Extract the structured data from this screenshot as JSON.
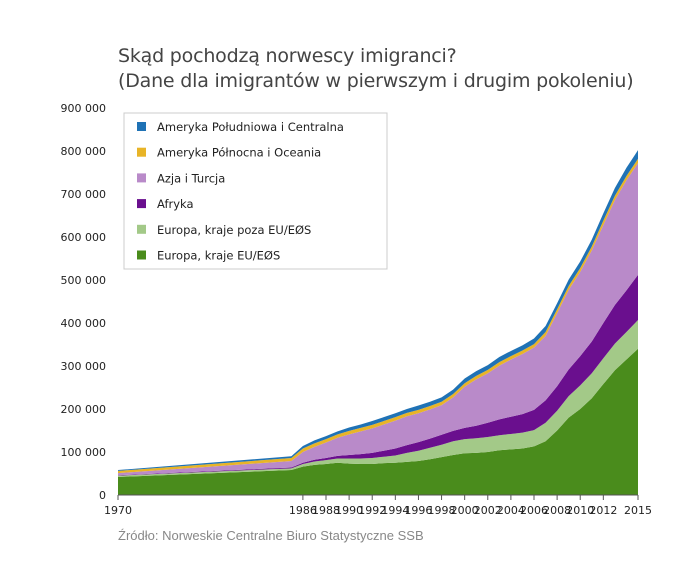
{
  "chart_data": {
    "type": "area",
    "stacked": true,
    "title": "Skąd pochodzą norwescy imigranci?",
    "subtitle": "(Dane dla imigrantów w pierwszym i drugim pokoleniu)",
    "source": "Źródło: Norweskie Centralne Biuro Statystyczne SSB",
    "ylim": [
      0,
      900000
    ],
    "y_ticks": [
      0,
      100000,
      200000,
      300000,
      400000,
      500000,
      600000,
      700000,
      800000,
      900000
    ],
    "y_tick_labels": [
      "0",
      "100 000",
      "200 000",
      "300 000",
      "400 000",
      "500 000",
      "600 000",
      "700 000",
      "800 000",
      "900 000"
    ],
    "x_ticks": [
      1970,
      1986,
      1988,
      1990,
      1992,
      1994,
      1996,
      1998,
      2000,
      2002,
      2004,
      2006,
      2008,
      2010,
      2012,
      2015
    ],
    "x": [
      1970,
      1985,
      1986,
      1987,
      1988,
      1989,
      1990,
      1991,
      1992,
      1993,
      1994,
      1995,
      1996,
      1997,
      1998,
      1999,
      2000,
      2001,
      2002,
      2003,
      2004,
      2005,
      2006,
      2007,
      2008,
      2009,
      2010,
      2011,
      2012,
      2013,
      2014,
      2015
    ],
    "legend_position": "top-left",
    "grid": false,
    "series": [
      {
        "name": "Europa, kraje EU/EØS",
        "color": "#4a8c1c",
        "values": [
          42000,
          58000,
          66000,
          70000,
          72000,
          75000,
          73000,
          72000,
          72000,
          74000,
          75000,
          77000,
          79000,
          83000,
          88000,
          93000,
          97000,
          98000,
          100000,
          104000,
          106000,
          108000,
          113000,
          125000,
          150000,
          180000,
          200000,
          225000,
          258000,
          290000,
          315000,
          340000
        ]
      },
      {
        "name": "Europa, kraje poza EU/EØS",
        "color": "#a3c988",
        "values": [
          3000,
          4000,
          6000,
          8000,
          9000,
          10000,
          12000,
          13000,
          14000,
          15000,
          17000,
          21000,
          24000,
          27000,
          29000,
          32000,
          33000,
          34000,
          35000,
          35000,
          36000,
          37000,
          38000,
          43000,
          46000,
          50000,
          55000,
          58000,
          60000,
          62000,
          64000,
          67000
        ]
      },
      {
        "name": "Afryka",
        "color": "#6a0f8e",
        "values": [
          1000,
          2000,
          3000,
          4000,
          5000,
          6000,
          8000,
          10000,
          12000,
          14000,
          16000,
          18000,
          20000,
          21000,
          23000,
          24000,
          26000,
          29000,
          33000,
          37000,
          40000,
          43000,
          47000,
          52000,
          57000,
          62000,
          68000,
          74000,
          82000,
          90000,
          97000,
          105000
        ]
      },
      {
        "name": "Azja i Turcja",
        "color": "#b98ac9",
        "values": [
          5000,
          15000,
          25000,
          30000,
          36000,
          42000,
          48000,
          53000,
          57000,
          61000,
          65000,
          67000,
          67000,
          68000,
          69000,
          78000,
          96000,
          108000,
          115000,
          125000,
          133000,
          140000,
          145000,
          150000,
          170000,
          185000,
          196000,
          212000,
          228000,
          244000,
          256000,
          260000
        ]
      },
      {
        "name": "Ameryka Północna i Oceania",
        "color": "#e8b427",
        "values": [
          5000,
          7000,
          8000,
          8000,
          8000,
          8000,
          8000,
          8000,
          8000,
          8000,
          8000,
          8000,
          8000,
          8000,
          8000,
          8000,
          8000,
          8000,
          8000,
          8000,
          8000,
          8000,
          8000,
          9000,
          9000,
          9000,
          9000,
          9000,
          10000,
          10000,
          10000,
          10000
        ]
      },
      {
        "name": "Ameryka Południowa i Centralna",
        "color": "#1f72b5",
        "values": [
          2000,
          4000,
          6000,
          7000,
          7000,
          7000,
          8000,
          8000,
          9000,
          9000,
          9000,
          9000,
          10000,
          10000,
          10000,
          10000,
          11000,
          11000,
          11000,
          12000,
          12000,
          12000,
          13000,
          14000,
          14000,
          15000,
          15000,
          16000,
          17000,
          18000,
          19000,
          20000
        ]
      }
    ]
  }
}
